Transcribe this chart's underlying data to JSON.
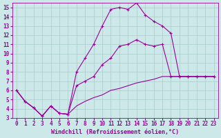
{
  "xlabel": "Windchill (Refroidissement éolien,°C)",
  "xlim": [
    -0.5,
    23.5
  ],
  "ylim": [
    3,
    15.5
  ],
  "xticks": [
    0,
    1,
    2,
    3,
    4,
    5,
    6,
    7,
    8,
    9,
    10,
    11,
    12,
    13,
    14,
    15,
    16,
    17,
    18,
    19,
    20,
    21,
    22,
    23
  ],
  "yticks": [
    3,
    4,
    5,
    6,
    7,
    8,
    9,
    10,
    11,
    12,
    13,
    14,
    15
  ],
  "background_color": "#cce8e8",
  "line_color": "#990099",
  "grid_color": "#aacccc",
  "line1_x": [
    0,
    1,
    2,
    3,
    4,
    5,
    6,
    7,
    8,
    9,
    10,
    11,
    12,
    13,
    14,
    15,
    16,
    17,
    18,
    19,
    20,
    21,
    22,
    23
  ],
  "line1_y": [
    6.0,
    4.8,
    4.1,
    3.2,
    4.3,
    3.5,
    3.4,
    6.5,
    7.0,
    7.5,
    8.8,
    9.5,
    10.8,
    11.0,
    11.5,
    11.0,
    10.8,
    11.0,
    7.5,
    7.5,
    7.5,
    7.5,
    7.5,
    7.5
  ],
  "line2_x": [
    0,
    1,
    2,
    3,
    4,
    5,
    6,
    7,
    8,
    9,
    10,
    11,
    12,
    13,
    14,
    15,
    16,
    17,
    18,
    19,
    20,
    21,
    22,
    23
  ],
  "line2_y": [
    6.0,
    4.8,
    4.1,
    3.2,
    4.3,
    3.5,
    3.4,
    8.0,
    9.5,
    11.0,
    13.0,
    14.8,
    15.0,
    14.8,
    15.5,
    14.2,
    13.5,
    13.0,
    12.2,
    7.5,
    7.5,
    7.5,
    7.5,
    7.5
  ],
  "line3_x": [
    0,
    1,
    2,
    3,
    4,
    5,
    6,
    7,
    8,
    9,
    10,
    11,
    12,
    13,
    14,
    15,
    16,
    17,
    18,
    19,
    20,
    21,
    22,
    23
  ],
  "line3_y": [
    6.0,
    4.8,
    4.1,
    3.2,
    4.3,
    3.5,
    3.4,
    4.3,
    4.8,
    5.2,
    5.5,
    6.0,
    6.2,
    6.5,
    6.8,
    7.0,
    7.2,
    7.5,
    7.5,
    7.5,
    7.5,
    7.5,
    7.5,
    7.5
  ],
  "tick_fontsize": 5.5,
  "label_fontsize": 6.0
}
